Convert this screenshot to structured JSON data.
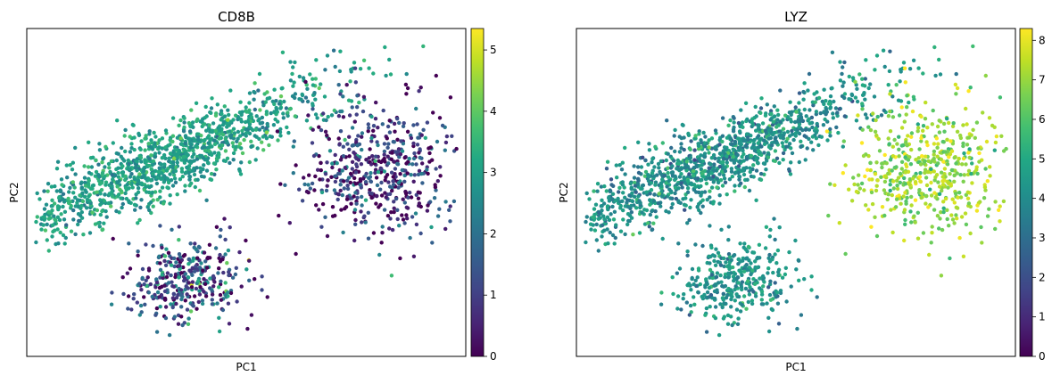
{
  "chart_data": [
    {
      "type": "scatter",
      "title": "CD8B",
      "xlabel": "PC1",
      "ylabel": "PC2",
      "colormap": "viridis",
      "colorbar": {
        "min": 0,
        "max": 5.35,
        "ticks": [
          0,
          1,
          2,
          3,
          4,
          5
        ]
      },
      "axis_ticks": false,
      "grid": false,
      "clusters": [
        {
          "label": "group A (upper-left elongated)",
          "center_x": 0.32,
          "center_y": 0.4,
          "spread_major": 0.22,
          "spread_minor": 0.05,
          "angle_deg": 32,
          "n_points": 1200,
          "mean_value": 3.0,
          "value_sd": 0.45
        },
        {
          "label": "group B (lower-left)",
          "center_x": 0.36,
          "center_y": 0.77,
          "spread_major": 0.07,
          "spread_minor": 0.06,
          "angle_deg": 0,
          "n_points": 340,
          "mean_value": 1.2,
          "value_sd": 1.2
        },
        {
          "label": "group C (right)",
          "center_x": 0.8,
          "center_y": 0.44,
          "spread_major": 0.09,
          "spread_minor": 0.1,
          "angle_deg": -10,
          "n_points": 520,
          "mean_value": 0.8,
          "value_sd": 1.1
        }
      ]
    },
    {
      "type": "scatter",
      "title": "LYZ",
      "xlabel": "PC1",
      "ylabel": "PC2",
      "colormap": "viridis",
      "colorbar": {
        "min": 0,
        "max": 8.3,
        "ticks": [
          0,
          1,
          2,
          3,
          4,
          5,
          6,
          7,
          8
        ]
      },
      "axis_ticks": false,
      "grid": false,
      "clusters": [
        {
          "label": "group A (upper-left elongated)",
          "center_x": 0.32,
          "center_y": 0.4,
          "spread_major": 0.22,
          "spread_minor": 0.05,
          "angle_deg": 32,
          "n_points": 1200,
          "mean_value": 4.2,
          "value_sd": 0.8
        },
        {
          "label": "group B (lower-left)",
          "center_x": 0.36,
          "center_y": 0.77,
          "spread_major": 0.07,
          "spread_minor": 0.06,
          "angle_deg": 0,
          "n_points": 340,
          "mean_value": 4.3,
          "value_sd": 0.7
        },
        {
          "label": "group C (right)",
          "center_x": 0.8,
          "center_y": 0.44,
          "spread_major": 0.09,
          "spread_minor": 0.1,
          "angle_deg": -10,
          "n_points": 520,
          "mean_value": 7.0,
          "value_sd": 0.8
        }
      ]
    }
  ]
}
